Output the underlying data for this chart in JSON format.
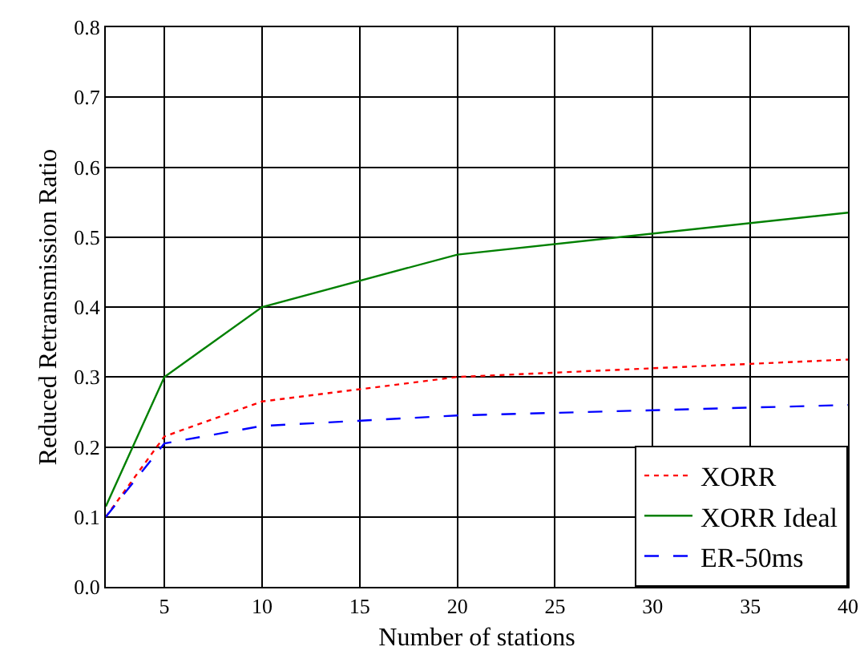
{
  "chart_data": {
    "type": "line",
    "xlabel": "Number of stations",
    "ylabel": "Reduced Retransmission Ratio",
    "x": [
      2,
      5,
      10,
      20,
      40
    ],
    "series": [
      {
        "name": "XORR",
        "color": "#ff0000",
        "line_style": "dotted",
        "values": [
          0.1,
          0.215,
          0.265,
          0.3,
          0.325
        ]
      },
      {
        "name": "XORR Ideal",
        "color": "#008000",
        "line_style": "solid",
        "values": [
          0.115,
          0.3,
          0.4,
          0.475,
          0.535
        ]
      },
      {
        "name": "ER-50ms",
        "color": "#0000ff",
        "line_style": "dashed",
        "values": [
          0.1,
          0.205,
          0.23,
          0.245,
          0.26
        ]
      }
    ],
    "xlim": [
      2,
      40
    ],
    "xticks": [
      5,
      10,
      15,
      20,
      25,
      30,
      35,
      40
    ],
    "ylim": [
      0,
      0.8
    ],
    "yticks": [
      {
        "value": 0,
        "label": "0.0"
      },
      0.1,
      0.2,
      0.3,
      0.4,
      0.5,
      0.6,
      0.7,
      0.8
    ],
    "grid": true,
    "legend": "bottom right",
    "marker": "none"
  }
}
